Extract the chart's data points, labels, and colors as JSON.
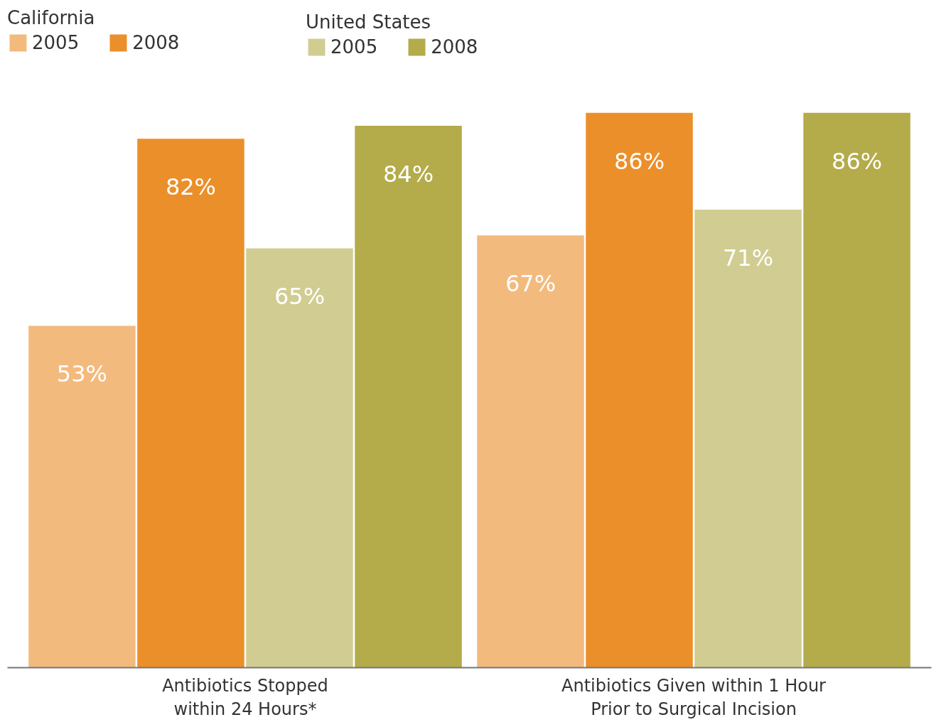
{
  "chart_data": {
    "type": "bar",
    "categories": [
      "Antibiotics Stopped\nwithin 24 Hours*",
      "Antibiotics Given within 1 Hour\nPrior to Surgical Incision"
    ],
    "series": [
      {
        "name": "2005",
        "color": "#f3ba7e",
        "values": [
          53,
          67
        ],
        "value_labels": [
          "53%",
          "67%"
        ]
      },
      {
        "name": "2008",
        "color": "#eb8f2a",
        "values": [
          82,
          86
        ],
        "value_labels": [
          "82%",
          "86%"
        ]
      },
      {
        "name": "2005",
        "color": "#d1cd92",
        "values": [
          65,
          71
        ],
        "value_labels": [
          "65%",
          "71%"
        ]
      },
      {
        "name": "2008",
        "color": "#b4ab4a",
        "values": [
          84,
          86
        ],
        "value_labels": [
          "84%",
          "86%"
        ]
      }
    ],
    "annotations": [
      "California",
      "United States"
    ],
    "grid": false,
    "legend": "top left"
  }
}
